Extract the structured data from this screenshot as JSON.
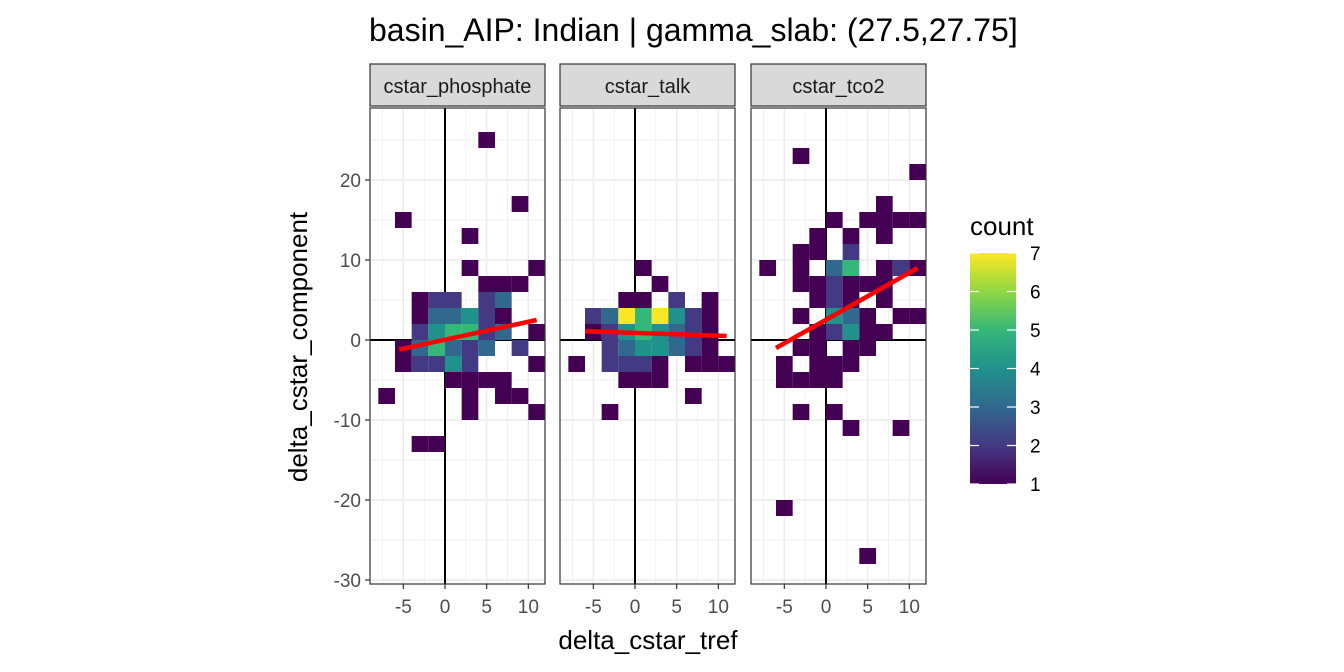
{
  "chart_data": {
    "type": "heatmap",
    "title": "basin_AIP: Indian | gamma_slab:  (27.5,27.75]",
    "xlabel": "delta_cstar_tref",
    "ylabel": "delta_cstar_component",
    "xlim": [
      -9,
      12
    ],
    "ylim": [
      -30.5,
      29
    ],
    "x_ticks": [
      -5,
      0,
      5,
      10
    ],
    "x_tick_labels": [
      "-5",
      "0",
      "5",
      "10"
    ],
    "y_ticks": [
      -30,
      -20,
      -10,
      0,
      10,
      20
    ],
    "y_tick_labels": [
      "-30",
      "-20",
      "-10",
      "0",
      "10",
      "20"
    ],
    "bin_width": 2,
    "grid": true,
    "legend": {
      "title": "count",
      "placement": "right",
      "min": 1,
      "max": 7,
      "ticks": [
        1,
        2,
        3,
        4,
        5,
        6,
        7
      ],
      "tick_labels": [
        "1",
        "2",
        "3",
        "4",
        "5",
        "6",
        "7"
      ]
    },
    "colors": {
      "viridis": [
        "#440154",
        "#443983",
        "#31688e",
        "#21918c",
        "#35b779",
        "#90d743",
        "#fde725"
      ],
      "fit_line": "#ff0000",
      "panel_border": "#333333",
      "grid_major": "#ebebeb",
      "strip_fill": "#d9d9d9"
    },
    "panels": [
      {
        "label": "cstar_phosphate",
        "fit": {
          "x": [
            -5.5,
            11
          ],
          "y": [
            -1.2,
            2.5
          ]
        },
        "cells": [
          [
            5,
            25,
            1
          ],
          [
            -5,
            15,
            1
          ],
          [
            3,
            13,
            1
          ],
          [
            9,
            17,
            1
          ],
          [
            3,
            9,
            1
          ],
          [
            11,
            9,
            1
          ],
          [
            5,
            7,
            1
          ],
          [
            7,
            7,
            1
          ],
          [
            9,
            7,
            1
          ],
          [
            -3,
            5,
            1
          ],
          [
            -1,
            5,
            2
          ],
          [
            1,
            5,
            2
          ],
          [
            5,
            5,
            2
          ],
          [
            7,
            5,
            3
          ],
          [
            -3,
            3,
            1
          ],
          [
            -1,
            3,
            3
          ],
          [
            1,
            3,
            3
          ],
          [
            3,
            3,
            4
          ],
          [
            5,
            3,
            2
          ],
          [
            7,
            3,
            1
          ],
          [
            -3,
            1,
            2
          ],
          [
            -1,
            1,
            4
          ],
          [
            1,
            1,
            5
          ],
          [
            3,
            1,
            5
          ],
          [
            5,
            1,
            2
          ],
          [
            7,
            1,
            3
          ],
          [
            11,
            1,
            1
          ],
          [
            -5,
            -1,
            1
          ],
          [
            -3,
            -1,
            3
          ],
          [
            -1,
            -1,
            5
          ],
          [
            1,
            -1,
            3
          ],
          [
            3,
            -1,
            2
          ],
          [
            5,
            -1,
            3
          ],
          [
            9,
            -1,
            2
          ],
          [
            -5,
            -3,
            1
          ],
          [
            -3,
            -3,
            2
          ],
          [
            -1,
            -3,
            2
          ],
          [
            1,
            -3,
            4
          ],
          [
            3,
            -3,
            2
          ],
          [
            11,
            -3,
            1
          ],
          [
            1,
            -5,
            1
          ],
          [
            3,
            -5,
            1
          ],
          [
            5,
            -5,
            1
          ],
          [
            7,
            -5,
            1
          ],
          [
            -7,
            -7,
            1
          ],
          [
            3,
            -7,
            1
          ],
          [
            7,
            -7,
            1
          ],
          [
            9,
            -7,
            1
          ],
          [
            3,
            -9,
            1
          ],
          [
            11,
            -9,
            1
          ],
          [
            -3,
            -13,
            1
          ],
          [
            -1,
            -13,
            1
          ]
        ]
      },
      {
        "label": "cstar_talk",
        "fit": {
          "x": [
            -6,
            11
          ],
          "y": [
            1.1,
            0.5
          ]
        },
        "cells": [
          [
            1,
            9,
            1
          ],
          [
            3,
            7,
            1
          ],
          [
            -1,
            5,
            1
          ],
          [
            1,
            5,
            1
          ],
          [
            5,
            5,
            2
          ],
          [
            9,
            5,
            1
          ],
          [
            -5,
            3,
            2
          ],
          [
            -3,
            3,
            3
          ],
          [
            -1,
            3,
            7
          ],
          [
            1,
            3,
            5
          ],
          [
            3,
            3,
            7
          ],
          [
            5,
            3,
            4
          ],
          [
            7,
            3,
            2
          ],
          [
            9,
            3,
            1
          ],
          [
            -5,
            1,
            1
          ],
          [
            -3,
            1,
            2
          ],
          [
            -1,
            1,
            4
          ],
          [
            1,
            1,
            5
          ],
          [
            3,
            1,
            4
          ],
          [
            5,
            1,
            3
          ],
          [
            7,
            1,
            2
          ],
          [
            9,
            1,
            1
          ],
          [
            -3,
            -1,
            2
          ],
          [
            -1,
            -1,
            3
          ],
          [
            1,
            -1,
            4
          ],
          [
            3,
            -1,
            4
          ],
          [
            5,
            -1,
            3
          ],
          [
            7,
            -1,
            2
          ],
          [
            9,
            -1,
            1
          ],
          [
            -7,
            -3,
            1
          ],
          [
            -3,
            -3,
            2
          ],
          [
            -1,
            -3,
            2
          ],
          [
            1,
            -3,
            2
          ],
          [
            3,
            -3,
            1
          ],
          [
            7,
            -3,
            1
          ],
          [
            9,
            -3,
            1
          ],
          [
            11,
            -3,
            1
          ],
          [
            -1,
            -5,
            1
          ],
          [
            1,
            -5,
            1
          ],
          [
            3,
            -5,
            1
          ],
          [
            7,
            -7,
            1
          ],
          [
            -3,
            -9,
            1
          ]
        ]
      },
      {
        "label": "cstar_tco2",
        "fit": {
          "x": [
            -6,
            11
          ],
          "y": [
            -1.0,
            9.0
          ]
        },
        "cells": [
          [
            -3,
            23,
            1
          ],
          [
            11,
            21,
            1
          ],
          [
            7,
            17,
            1
          ],
          [
            1,
            15,
            1
          ],
          [
            5,
            15,
            1
          ],
          [
            7,
            15,
            1
          ],
          [
            9,
            15,
            1
          ],
          [
            11,
            15,
            1
          ],
          [
            -1,
            13,
            1
          ],
          [
            3,
            13,
            1
          ],
          [
            7,
            13,
            1
          ],
          [
            -3,
            11,
            1
          ],
          [
            -1,
            11,
            1
          ],
          [
            3,
            11,
            2
          ],
          [
            -3,
            9,
            1
          ],
          [
            1,
            9,
            3
          ],
          [
            3,
            9,
            5
          ],
          [
            7,
            9,
            1
          ],
          [
            9,
            9,
            2
          ],
          [
            11,
            9,
            1
          ],
          [
            -7,
            9,
            1
          ],
          [
            -3,
            7,
            1
          ],
          [
            -1,
            7,
            1
          ],
          [
            1,
            7,
            2
          ],
          [
            3,
            7,
            1
          ],
          [
            5,
            7,
            1
          ],
          [
            7,
            7,
            1
          ],
          [
            -1,
            5,
            1
          ],
          [
            1,
            5,
            2
          ],
          [
            3,
            5,
            1
          ],
          [
            7,
            5,
            1
          ],
          [
            -3,
            3,
            1
          ],
          [
            1,
            3,
            4
          ],
          [
            3,
            3,
            3
          ],
          [
            5,
            3,
            1
          ],
          [
            9,
            3,
            1
          ],
          [
            11,
            3,
            1
          ],
          [
            -1,
            1,
            1
          ],
          [
            1,
            1,
            2
          ],
          [
            3,
            1,
            4
          ],
          [
            5,
            1,
            1
          ],
          [
            7,
            1,
            1
          ],
          [
            -3,
            -1,
            1
          ],
          [
            -1,
            -1,
            1
          ],
          [
            3,
            -1,
            1
          ],
          [
            5,
            -1,
            1
          ],
          [
            -5,
            -3,
            1
          ],
          [
            -1,
            -3,
            1
          ],
          [
            1,
            -3,
            1
          ],
          [
            3,
            -3,
            1
          ],
          [
            -5,
            -5,
            1
          ],
          [
            -3,
            -5,
            1
          ],
          [
            -1,
            -5,
            1
          ],
          [
            1,
            -5,
            1
          ],
          [
            -3,
            -9,
            1
          ],
          [
            1,
            -9,
            1
          ],
          [
            3,
            -11,
            1
          ],
          [
            9,
            -11,
            1
          ],
          [
            -5,
            -21,
            1
          ],
          [
            5,
            -27,
            1
          ]
        ]
      }
    ]
  }
}
